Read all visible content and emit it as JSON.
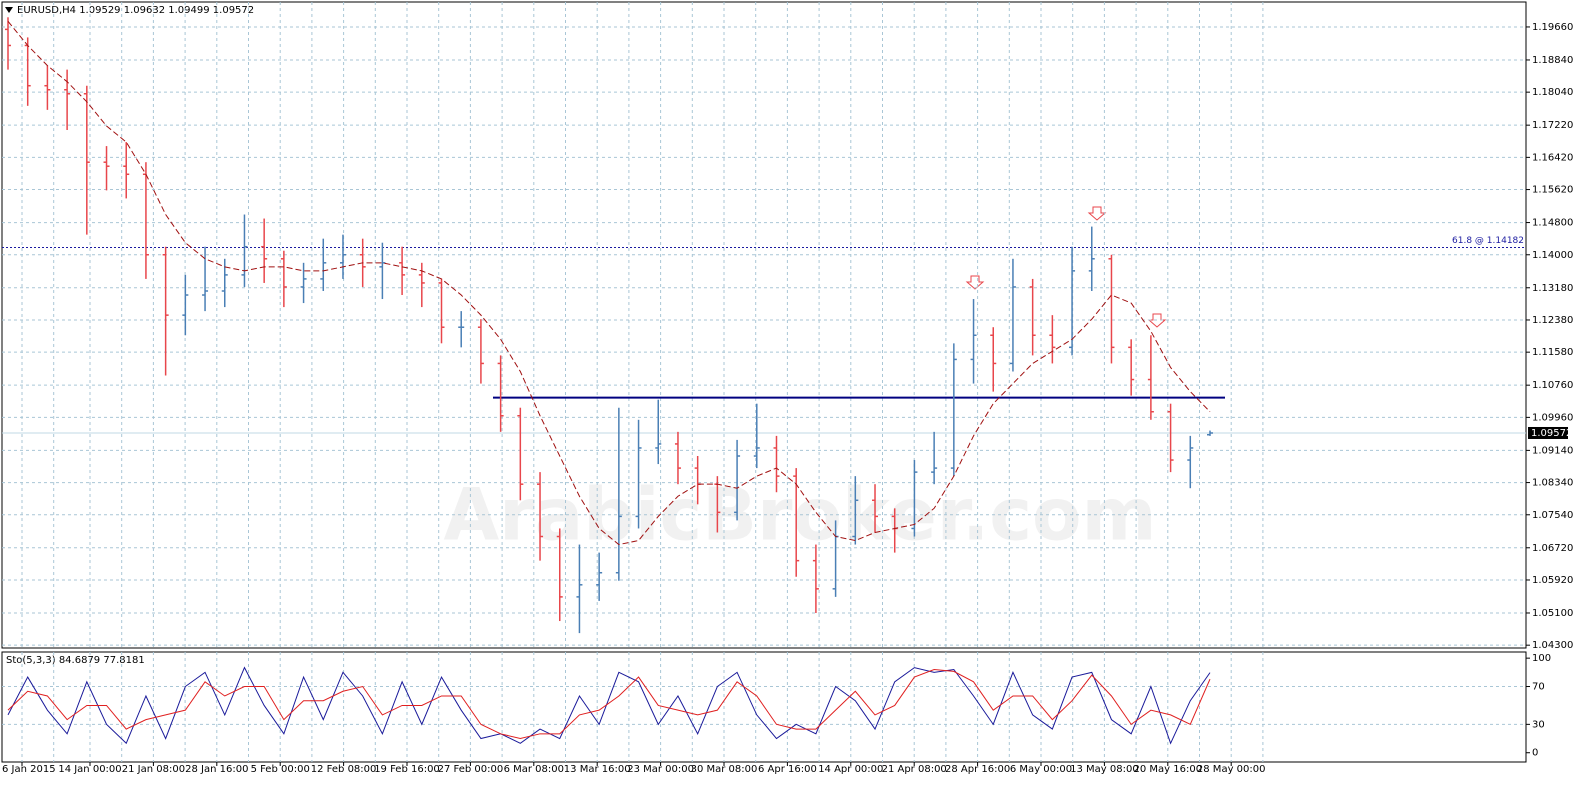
{
  "watermark": "ArabicBroker.com",
  "chart_data": [
    {
      "type": "ohlc",
      "title": "EURUSD,H4  1.09529 1.09632 1.09499 1.09572",
      "up_color": "#4a7fb5",
      "down_color": "#e8464b",
      "open": [
        1.196,
        1.192,
        1.182,
        1.181,
        1.18,
        1.163,
        1.162,
        1.16,
        1.14,
        1.125,
        1.13,
        1.131,
        1.135,
        1.142,
        1.139,
        1.132,
        1.134,
        1.138,
        1.14,
        1.137,
        1.138,
        1.135,
        1.133,
        1.122,
        1.122,
        1.113,
        1.1,
        1.083,
        1.07,
        1.055,
        1.058,
        1.061,
        1.075,
        1.092,
        1.093,
        1.087,
        1.083,
        1.076,
        1.09,
        1.092,
        1.085,
        1.064,
        1.057,
        1.07,
        1.079,
        1.075,
        1.072,
        1.086,
        1.087,
        1.114,
        1.12,
        1.113,
        1.132,
        1.12,
        1.117,
        1.136,
        1.139,
        1.117,
        1.109,
        1.101,
        1.089,
        1.09529
      ],
      "high": [
        1.199,
        1.194,
        1.187,
        1.186,
        1.182,
        1.167,
        1.168,
        1.163,
        1.142,
        1.135,
        1.142,
        1.139,
        1.15,
        1.149,
        1.141,
        1.138,
        1.144,
        1.145,
        1.144,
        1.143,
        1.142,
        1.138,
        1.134,
        1.126,
        1.124,
        1.115,
        1.102,
        1.086,
        1.072,
        1.068,
        1.066,
        1.102,
        1.099,
        1.104,
        1.096,
        1.09,
        1.085,
        1.094,
        1.103,
        1.095,
        1.087,
        1.068,
        1.074,
        1.085,
        1.083,
        1.077,
        1.089,
        1.096,
        1.118,
        1.129,
        1.122,
        1.139,
        1.134,
        1.125,
        1.142,
        1.147,
        1.14,
        1.119,
        1.12,
        1.103,
        1.095,
        1.09632
      ],
      "low": [
        1.186,
        1.177,
        1.176,
        1.171,
        1.145,
        1.156,
        1.154,
        1.134,
        1.11,
        1.12,
        1.126,
        1.127,
        1.132,
        1.133,
        1.127,
        1.128,
        1.131,
        1.134,
        1.132,
        1.129,
        1.13,
        1.127,
        1.118,
        1.117,
        1.108,
        1.096,
        1.079,
        1.064,
        1.049,
        1.046,
        1.054,
        1.059,
        1.072,
        1.088,
        1.083,
        1.078,
        1.071,
        1.074,
        1.087,
        1.081,
        1.06,
        1.051,
        1.055,
        1.068,
        1.071,
        1.066,
        1.07,
        1.083,
        1.085,
        1.108,
        1.106,
        1.111,
        1.115,
        1.113,
        1.115,
        1.131,
        1.113,
        1.105,
        1.099,
        1.086,
        1.082,
        1.09499
      ],
      "close": [
        1.192,
        1.182,
        1.181,
        1.18,
        1.163,
        1.162,
        1.16,
        1.14,
        1.125,
        1.13,
        1.131,
        1.135,
        1.142,
        1.139,
        1.132,
        1.134,
        1.138,
        1.14,
        1.137,
        1.138,
        1.135,
        1.133,
        1.122,
        1.122,
        1.113,
        1.1,
        1.083,
        1.07,
        1.055,
        1.058,
        1.061,
        1.075,
        1.092,
        1.093,
        1.087,
        1.083,
        1.076,
        1.09,
        1.092,
        1.085,
        1.064,
        1.057,
        1.07,
        1.079,
        1.075,
        1.072,
        1.086,
        1.087,
        1.114,
        1.12,
        1.113,
        1.132,
        1.12,
        1.117,
        1.136,
        1.139,
        1.117,
        1.109,
        1.101,
        1.089,
        1.092,
        1.09572
      ],
      "ma": {
        "color": "#a01010",
        "values": [
          1.198,
          1.192,
          1.187,
          1.183,
          1.178,
          1.172,
          1.168,
          1.16,
          1.15,
          1.143,
          1.139,
          1.137,
          1.136,
          1.137,
          1.137,
          1.136,
          1.136,
          1.137,
          1.138,
          1.138,
          1.137,
          1.136,
          1.134,
          1.13,
          1.125,
          1.119,
          1.111,
          1.1,
          1.09,
          1.08,
          1.072,
          1.068,
          1.069,
          1.075,
          1.08,
          1.083,
          1.083,
          1.082,
          1.085,
          1.087,
          1.083,
          1.076,
          1.07,
          1.069,
          1.071,
          1.072,
          1.073,
          1.077,
          1.085,
          1.095,
          1.103,
          1.108,
          1.113,
          1.116,
          1.119,
          1.124,
          1.13,
          1.128,
          1.121,
          1.112,
          1.106,
          1.101
        ]
      },
      "levels": [
        {
          "label": "61.8 @ 1.14182",
          "value": 1.14182,
          "color": "#1a1aa0"
        },
        {
          "value": 1.1045,
          "color": "#000080"
        }
      ],
      "current_price": {
        "value": 1.09572,
        "label": "1.09572"
      },
      "ylim": [
        1.0423,
        1.2028
      ],
      "yticks": [
        {
          "value": 1.1966,
          "label": "1.19660"
        },
        {
          "value": 1.1884,
          "label": "1.18840"
        },
        {
          "value": 1.1804,
          "label": "1.18040"
        },
        {
          "value": 1.1722,
          "label": "1.17220"
        },
        {
          "value": 1.1642,
          "label": "1.16420"
        },
        {
          "value": 1.1562,
          "label": "1.15620"
        },
        {
          "value": 1.148,
          "label": "1.14800"
        },
        {
          "value": 1.14,
          "label": "1.14000"
        },
        {
          "value": 1.1318,
          "label": "1.13180"
        },
        {
          "value": 1.1238,
          "label": "1.12380"
        },
        {
          "value": 1.1158,
          "label": "1.11580"
        },
        {
          "value": 1.1076,
          "label": "1.10760"
        },
        {
          "value": 1.0996,
          "label": "1.09960"
        },
        {
          "value": 1.0914,
          "label": "1.09140"
        },
        {
          "value": 1.0834,
          "label": "1.08340"
        },
        {
          "value": 1.0754,
          "label": "1.07540"
        },
        {
          "value": 1.0672,
          "label": "1.06720"
        },
        {
          "value": 1.0592,
          "label": "1.05920"
        },
        {
          "value": 1.051,
          "label": "1.05100"
        },
        {
          "value": 1.043,
          "label": "1.04300"
        }
      ],
      "x_labels": [
        "6 Jan 2015",
        "14 Jan 00:00",
        "21 Jan 08:00",
        "28 Jan 16:00",
        "5 Feb 00:00",
        "12 Feb 08:00",
        "19 Feb 16:00",
        "27 Feb 00:00",
        "6 Mar 08:00",
        "13 Mar 16:00",
        "23 Mar 00:00",
        "30 Mar 08:00",
        "6 Apr 16:00",
        "14 Apr 00:00",
        "21 Apr 08:00",
        "28 Apr 16:00",
        "6 May 00:00",
        "13 May 08:00",
        "20 May 16:00",
        "28 May 00:00"
      ],
      "grid": true
    },
    {
      "type": "stochastic",
      "title": "Sto(5,3,3) 84.6879 77.8181",
      "series": [
        {
          "color": "#1a1a9a",
          "values": [
            40,
            80,
            45,
            20,
            75,
            30,
            10,
            60,
            15,
            70,
            85,
            40,
            90,
            50,
            20,
            80,
            35,
            85,
            60,
            20,
            75,
            30,
            80,
            45,
            15,
            20,
            10,
            25,
            15,
            60,
            30,
            85,
            75,
            30,
            60,
            20,
            70,
            85,
            40,
            15,
            30,
            20,
            70,
            55,
            25,
            75,
            90,
            85,
            88,
            60,
            30,
            85,
            40,
            25,
            80,
            85,
            35,
            20,
            70,
            10,
            55,
            84.6879
          ]
        },
        {
          "color": "#e02020",
          "values": [
            45,
            65,
            60,
            35,
            50,
            50,
            25,
            35,
            40,
            45,
            75,
            60,
            70,
            70,
            35,
            55,
            55,
            65,
            70,
            40,
            50,
            50,
            60,
            60,
            30,
            20,
            15,
            20,
            20,
            40,
            45,
            60,
            80,
            50,
            45,
            40,
            45,
            75,
            60,
            30,
            25,
            25,
            45,
            65,
            40,
            50,
            80,
            88,
            86,
            75,
            45,
            60,
            60,
            35,
            55,
            82,
            60,
            30,
            45,
            40,
            30,
            77.8181
          ]
        }
      ],
      "ylim": [
        -9.8,
        106.5
      ],
      "yticks": [
        0,
        30,
        70,
        100
      ],
      "grid": true
    }
  ]
}
